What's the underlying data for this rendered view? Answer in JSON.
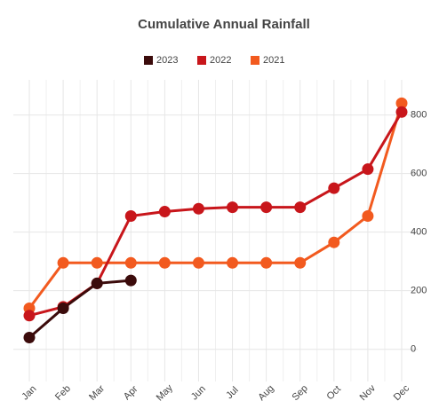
{
  "chart_data": {
    "type": "line",
    "title": "Cumulative Annual Rainfall",
    "categories": [
      "Jan",
      "Feb",
      "Mar",
      "Apr",
      "May",
      "Jun",
      "Jul",
      "Aug",
      "Sep",
      "Oct",
      "Nov",
      "Dec"
    ],
    "series": [
      {
        "name": "2023",
        "color": "#3b0b0b",
        "values": [
          40,
          140,
          225,
          235,
          null,
          null,
          null,
          null,
          null,
          null,
          null,
          null
        ]
      },
      {
        "name": "2022",
        "color": "#c8161b",
        "values": [
          115,
          145,
          225,
          455,
          470,
          480,
          485,
          485,
          485,
          550,
          615,
          810
        ]
      },
      {
        "name": "2021",
        "color": "#f25a1f",
        "values": [
          140,
          295,
          295,
          295,
          295,
          295,
          295,
          295,
          295,
          365,
          455,
          840
        ]
      }
    ],
    "ylim": [
      -110,
      920
    ],
    "yticks": [
      0,
      200,
      400,
      600,
      800
    ],
    "grid": true,
    "legend": "top"
  }
}
